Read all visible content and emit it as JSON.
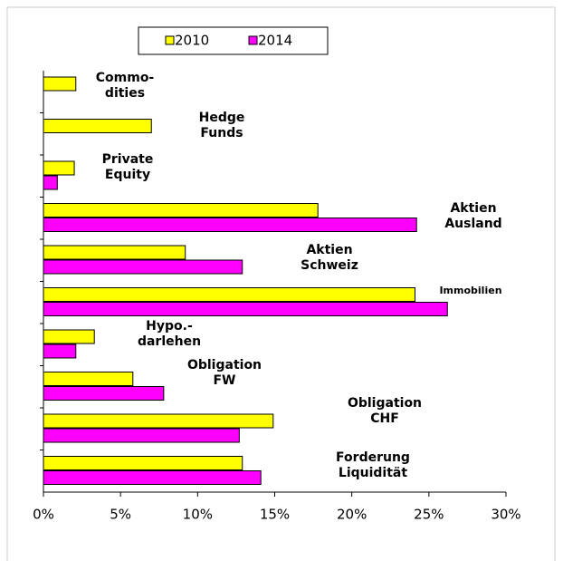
{
  "chart_data": {
    "type": "barh",
    "categories": [
      "Commo-\ndities",
      "Hedge\nFunds",
      "Private\nEquity",
      "Aktien\nAusland",
      "Aktien\nSchweiz",
      "Immobilien",
      "Hypo.-\ndarlehen",
      "Obligation\nFW",
      "Obligation\nCHF",
      "Forderung\nLiquidität"
    ],
    "series": [
      {
        "name": "2010",
        "color": "#ffff00",
        "values": [
          2.1,
          7.0,
          2.0,
          17.8,
          9.2,
          24.1,
          3.3,
          5.8,
          14.9,
          12.9
        ]
      },
      {
        "name": "2014",
        "color": "#ff00ff",
        "values": [
          null,
          null,
          0.9,
          24.2,
          12.9,
          26.2,
          2.1,
          7.8,
          12.7,
          14.1
        ]
      }
    ],
    "xlim": [
      0,
      30
    ],
    "xticks": [
      {
        "value": 0,
        "label": "0%"
      },
      {
        "value": 5,
        "label": "5%"
      },
      {
        "value": 10,
        "label": "10%"
      },
      {
        "value": 15,
        "label": "15%"
      },
      {
        "value": 20,
        "label": "20%"
      },
      {
        "value": 25,
        "label": "25%"
      },
      {
        "value": 30,
        "label": "30%"
      }
    ],
    "legend": "top"
  }
}
